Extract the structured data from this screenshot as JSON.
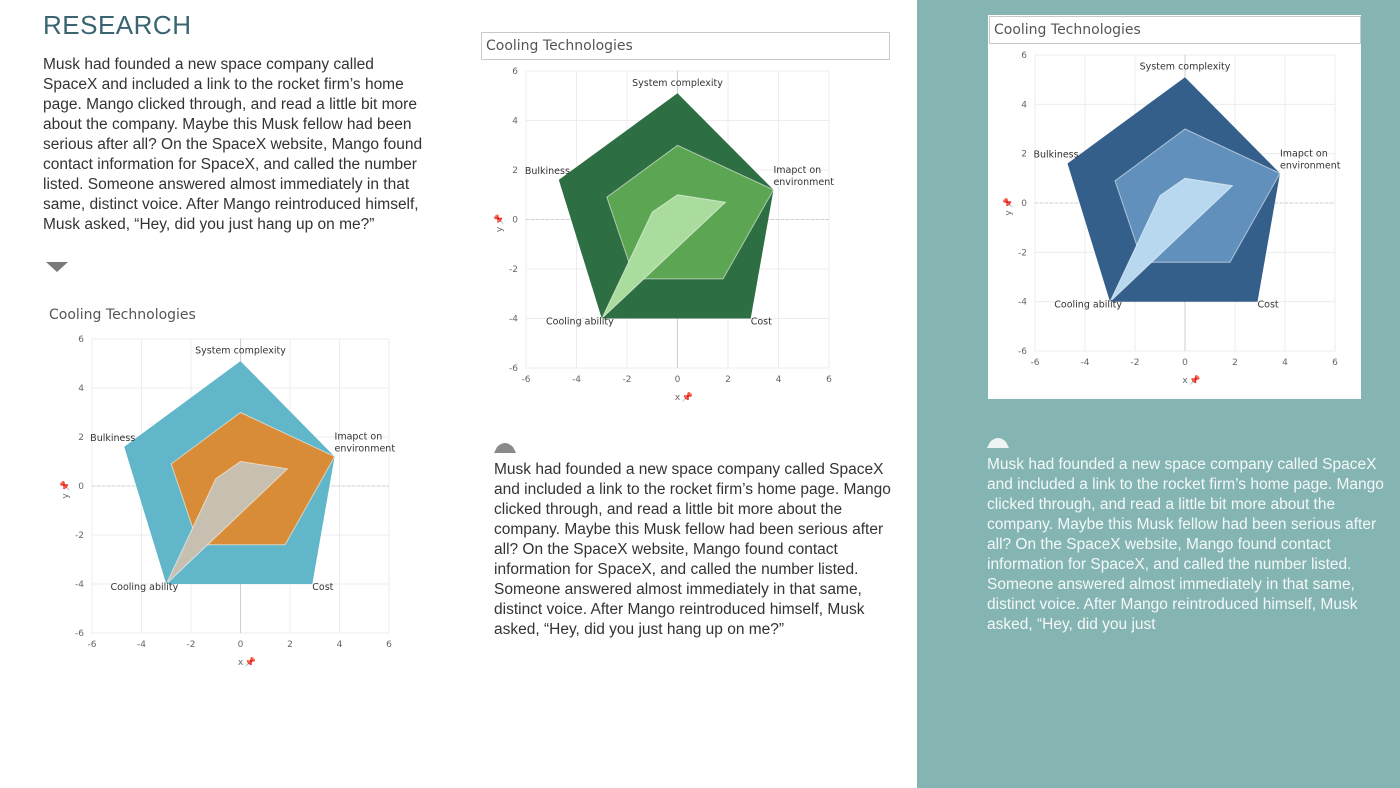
{
  "page": {
    "heading": "RESEARCH",
    "body_text": "Musk had founded a new space company called SpaceX and included a link to the rocket firm’s home page. Mango clicked through, and read a little bit more about the company. Maybe this Musk fellow had been serious after all? On the SpaceX website, Mango found contact information for SpaceX, and called the number listed. Someone answered almost immediately in that same, distinct voice. After Mango reintroduced himself, Musk asked, “Hey, did you just hang up on me?”",
    "body_text_right": "Musk had founded a new space company called SpaceX and included a link to the rocket firm’s home page. Mango clicked through, and read a little bit more about the company. Maybe this Musk fellow had been serious after all? On the SpaceX website, Mango found contact information for SpaceX, and called the number listed. Someone answered almost immediately in that same, distinct voice. After Mango reintroduced himself, Musk asked, “Hey, did you just",
    "panel_color": "#84b5b3",
    "icons": [
      "triangle-down-icon",
      "triangle-up-icon",
      "triangle-up-icon"
    ]
  },
  "chart_data": [
    {
      "type": "scatter",
      "title": "Cooling Technologies",
      "xlabel": "x",
      "ylabel": "y",
      "xlim": [
        -6,
        6
      ],
      "ylim": [
        -6,
        6
      ],
      "xticks": [
        -6,
        -4,
        -2,
        0,
        2,
        4,
        6
      ],
      "yticks": [
        -6,
        -4,
        -2,
        0,
        2,
        4,
        6
      ],
      "grid": true,
      "vertex_labels": [
        {
          "text": "System complexity",
          "x": 0,
          "y": 5
        },
        {
          "text": "Imapct on environment",
          "x": 3.8,
          "y": 1.2
        },
        {
          "text": "Cost",
          "x": 2.9,
          "y": -4
        },
        {
          "text": "Cooling ability",
          "x": -3,
          "y": -4
        },
        {
          "text": "Bulkiness",
          "x": -4.7,
          "y": 1.6
        }
      ],
      "series": [
        {
          "values": [
            [
              0,
              5.1
            ],
            [
              3.8,
              1.2
            ],
            [
              2.9,
              -4
            ],
            [
              -3,
              -4
            ],
            [
              -4.7,
              1.6
            ]
          ],
          "color": "#62b6c9"
        },
        {
          "values": [
            [
              0,
              3
            ],
            [
              3.8,
              1.2
            ],
            [
              1.8,
              -2.4
            ],
            [
              -1.7,
              -2.4
            ],
            [
              -2.8,
              0.9
            ]
          ],
          "color": "#d98c38"
        },
        {
          "values": [
            [
              0,
              1
            ],
            [
              1.9,
              0.7
            ],
            [
              -3,
              -4
            ],
            [
              -1,
              0.3
            ]
          ],
          "color": "#c7c0b0"
        }
      ]
    },
    {
      "type": "scatter",
      "title": "Cooling Technologies",
      "xlabel": "x",
      "ylabel": "y",
      "xlim": [
        -6,
        6
      ],
      "ylim": [
        -6,
        6
      ],
      "xticks": [
        -6,
        -4,
        -2,
        0,
        2,
        4,
        6
      ],
      "yticks": [
        -6,
        -4,
        -2,
        0,
        2,
        4,
        6
      ],
      "grid": true,
      "vertex_labels": [
        {
          "text": "System complexity",
          "x": 0,
          "y": 5
        },
        {
          "text": "Imapct on environment",
          "x": 3.8,
          "y": 1.2
        },
        {
          "text": "Cost",
          "x": 2.9,
          "y": -4
        },
        {
          "text": "Cooling ability",
          "x": -3,
          "y": -4
        },
        {
          "text": "Bulkiness",
          "x": -4.7,
          "y": 1.6
        }
      ],
      "series": [
        {
          "values": [
            [
              0,
              5.1
            ],
            [
              3.8,
              1.2
            ],
            [
              2.9,
              -4
            ],
            [
              -3,
              -4
            ],
            [
              -4.7,
              1.6
            ]
          ],
          "color": "#2d6e42"
        },
        {
          "values": [
            [
              0,
              3
            ],
            [
              3.8,
              1.2
            ],
            [
              1.8,
              -2.4
            ],
            [
              -1.7,
              -2.4
            ],
            [
              -2.8,
              0.9
            ]
          ],
          "color": "#5ca553"
        },
        {
          "values": [
            [
              0,
              1
            ],
            [
              1.9,
              0.7
            ],
            [
              -3,
              -4
            ],
            [
              -1,
              0.3
            ]
          ],
          "color": "#aadd9d"
        }
      ]
    },
    {
      "type": "scatter",
      "title": "Cooling Technologies",
      "xlabel": "x",
      "ylabel": "y",
      "xlim": [
        -6,
        6
      ],
      "ylim": [
        -6,
        6
      ],
      "xticks": [
        -6,
        -4,
        -2,
        0,
        2,
        4,
        6
      ],
      "yticks": [
        -6,
        -4,
        -2,
        0,
        2,
        4,
        6
      ],
      "grid": true,
      "vertex_labels": [
        {
          "text": "System complexity",
          "x": 0,
          "y": 5
        },
        {
          "text": "Imapct on environment",
          "x": 3.8,
          "y": 1.2
        },
        {
          "text": "Cost",
          "x": 2.9,
          "y": -4
        },
        {
          "text": "Cooling ability",
          "x": -3,
          "y": -4
        },
        {
          "text": "Bulkiness",
          "x": -4.7,
          "y": 1.6
        }
      ],
      "series": [
        {
          "values": [
            [
              0,
              5.1
            ],
            [
              3.8,
              1.2
            ],
            [
              2.9,
              -4
            ],
            [
              -3,
              -4
            ],
            [
              -4.7,
              1.6
            ]
          ],
          "color": "#345f8b"
        },
        {
          "values": [
            [
              0,
              3
            ],
            [
              3.8,
              1.2
            ],
            [
              1.8,
              -2.4
            ],
            [
              -1.7,
              -2.4
            ],
            [
              -2.8,
              0.9
            ]
          ],
          "color": "#6290bd"
        },
        {
          "values": [
            [
              0,
              1
            ],
            [
              1.9,
              0.7
            ],
            [
              -3,
              -4
            ],
            [
              -1,
              0.3
            ]
          ],
          "color": "#b7d8ef"
        }
      ]
    }
  ]
}
